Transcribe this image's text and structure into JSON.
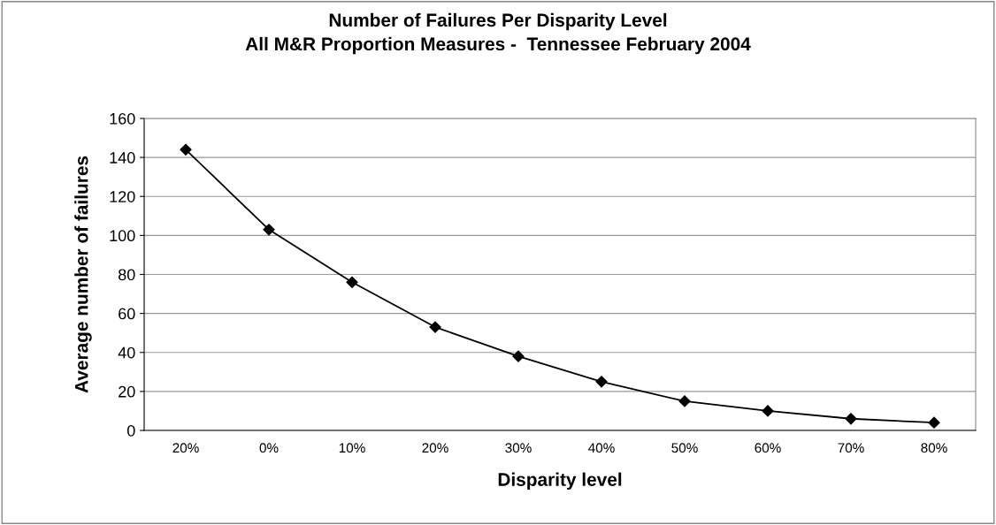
{
  "chart_data": {
    "type": "line",
    "title": "Number of Failures Per Disparity Level\nAll M&R Proportion Measures -  Tennessee February 2004",
    "xlabel": "Disparity level",
    "ylabel": "Average number of failures",
    "categories": [
      "20%",
      "0%",
      "10%",
      "20%",
      "30%",
      "40%",
      "50%",
      "60%",
      "70%",
      "80%"
    ],
    "series": [
      {
        "color": "#000000",
        "values": [
          144,
          103,
          76,
          53,
          38,
          25,
          15,
          10,
          6,
          4
        ]
      }
    ],
    "ylim": [
      0,
      160
    ],
    "yticks": [
      0,
      20,
      40,
      60,
      80,
      100,
      120,
      140,
      160
    ],
    "grid": "y",
    "marker": "diamond",
    "line_style": "solid",
    "legend": false
  }
}
